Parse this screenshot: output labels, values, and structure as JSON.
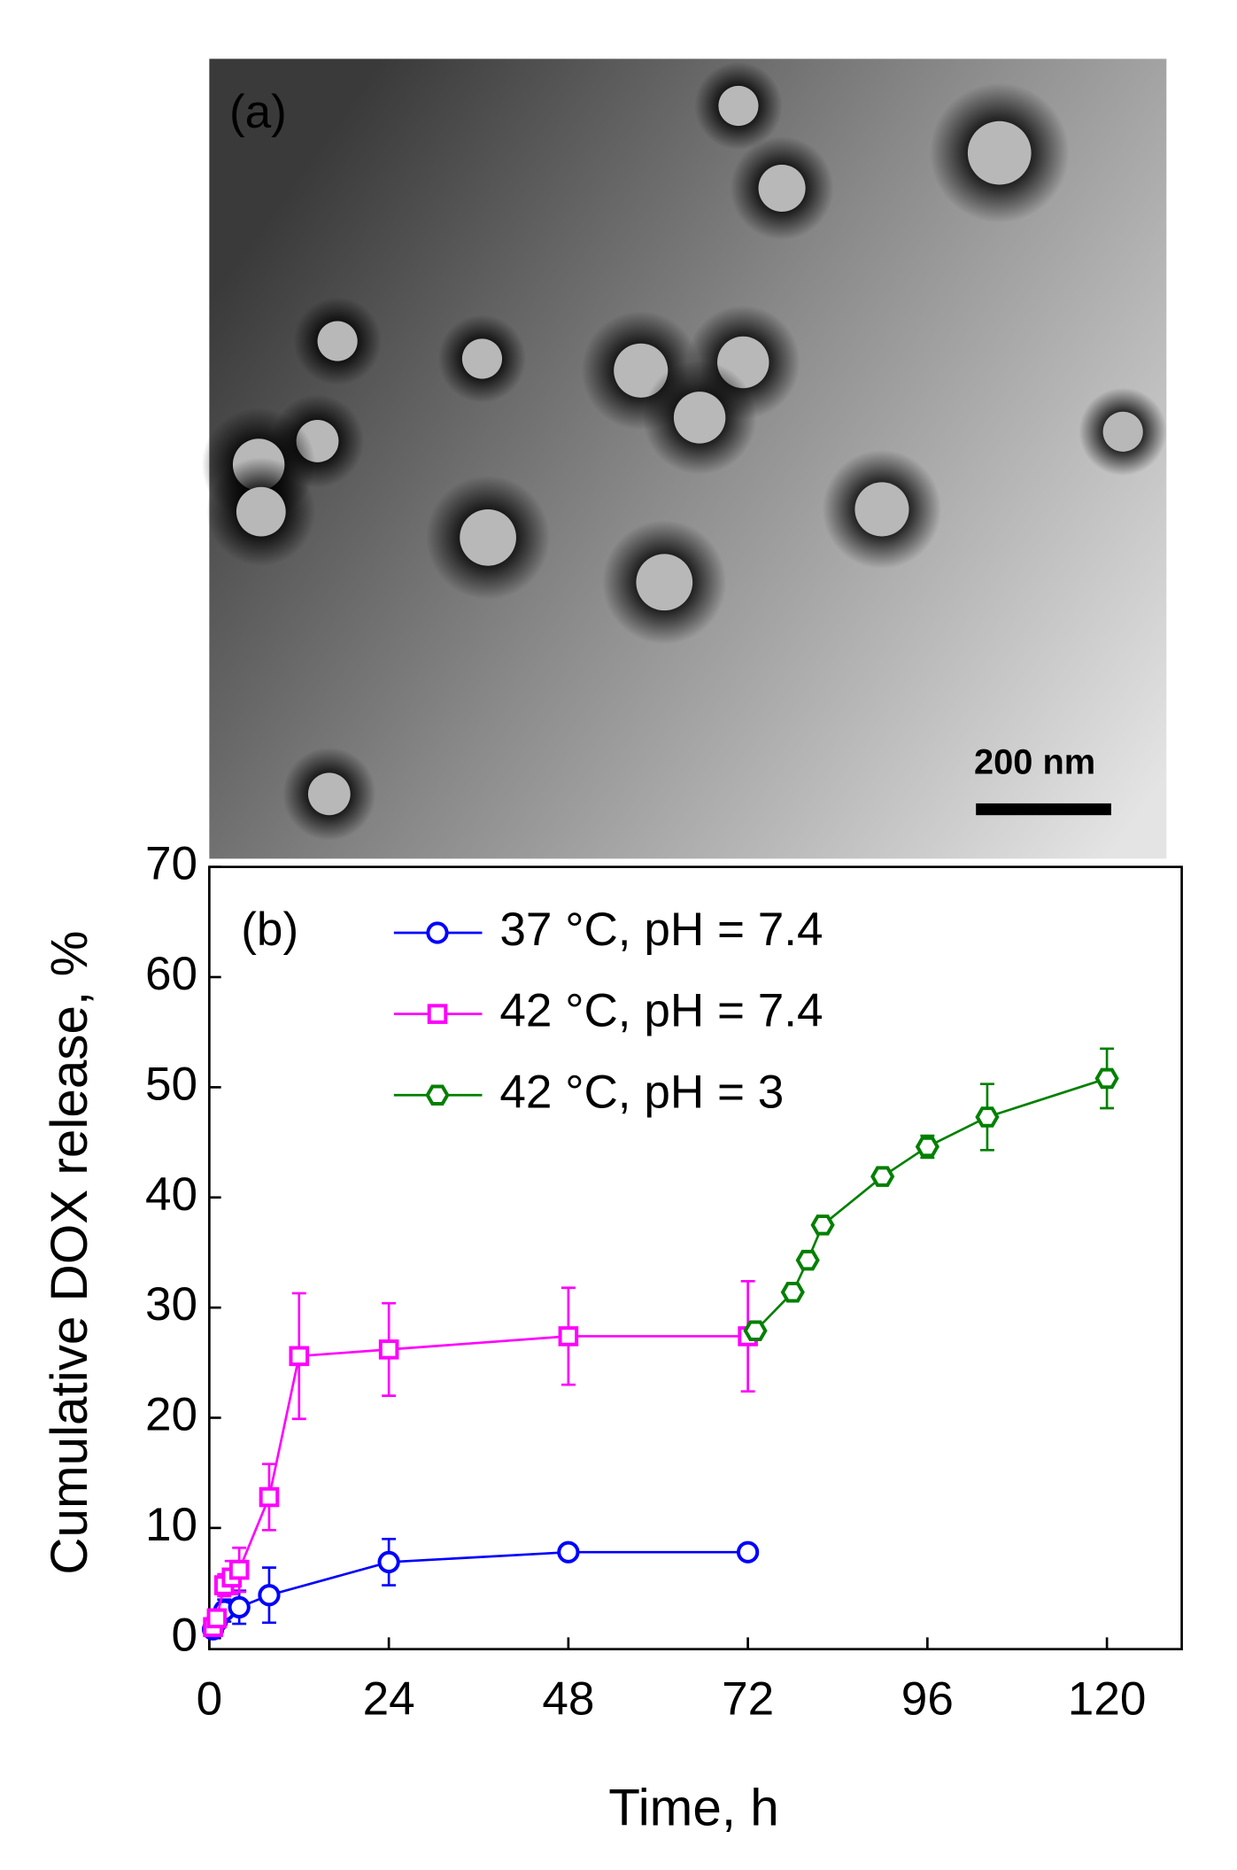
{
  "panel_a": {
    "label": "(a)",
    "scale_bar": "200 nm"
  },
  "chart_data": {
    "type": "line",
    "panel_label": "(b)",
    "x_label": "Time, h",
    "y_label": "Cumulative DOX release, %",
    "xlim": [
      0,
      130
    ],
    "ylim": [
      -1,
      70
    ],
    "xticks": [
      0,
      24,
      48,
      72,
      96,
      120
    ],
    "yticks": [
      0,
      10,
      20,
      30,
      40,
      50,
      60,
      70
    ],
    "series": [
      {
        "name": "37 °C, pH = 7.4",
        "color": "#0000ff",
        "marker": "circle",
        "x": [
          0.5,
          1,
          2,
          4,
          8,
          24,
          48,
          72
        ],
        "values": [
          0.8,
          1.5,
          2.5,
          2.8,
          3.9,
          6.9,
          7.8,
          7.8
        ],
        "errors": [
          0.5,
          0.8,
          1,
          1.5,
          2.5,
          2.1,
          0.5,
          0.5
        ]
      },
      {
        "name": "42 °C, pH = 7.4",
        "color": "#ff00ff",
        "marker": "square",
        "x": [
          0.5,
          1,
          2,
          3,
          4,
          8,
          12,
          24,
          48,
          72
        ],
        "values": [
          1,
          1.8,
          4.8,
          5.5,
          6.2,
          12.8,
          25.6,
          26.2,
          27.4,
          27.4
        ],
        "errors": [
          0.5,
          0.8,
          1,
          1.5,
          2,
          3,
          5.7,
          4.2,
          4.4,
          5
        ]
      },
      {
        "name": "42 °C, pH = 3",
        "color": "#008000",
        "marker": "hexagon",
        "x": [
          73,
          78,
          80,
          82,
          90,
          96,
          104,
          120
        ],
        "values": [
          27.9,
          31.4,
          34.3,
          37.5,
          41.9,
          44.6,
          47.3,
          50.8
        ],
        "errors": [
          0.5,
          0.5,
          0.5,
          0.5,
          0.5,
          1,
          3,
          2.7
        ]
      }
    ]
  }
}
